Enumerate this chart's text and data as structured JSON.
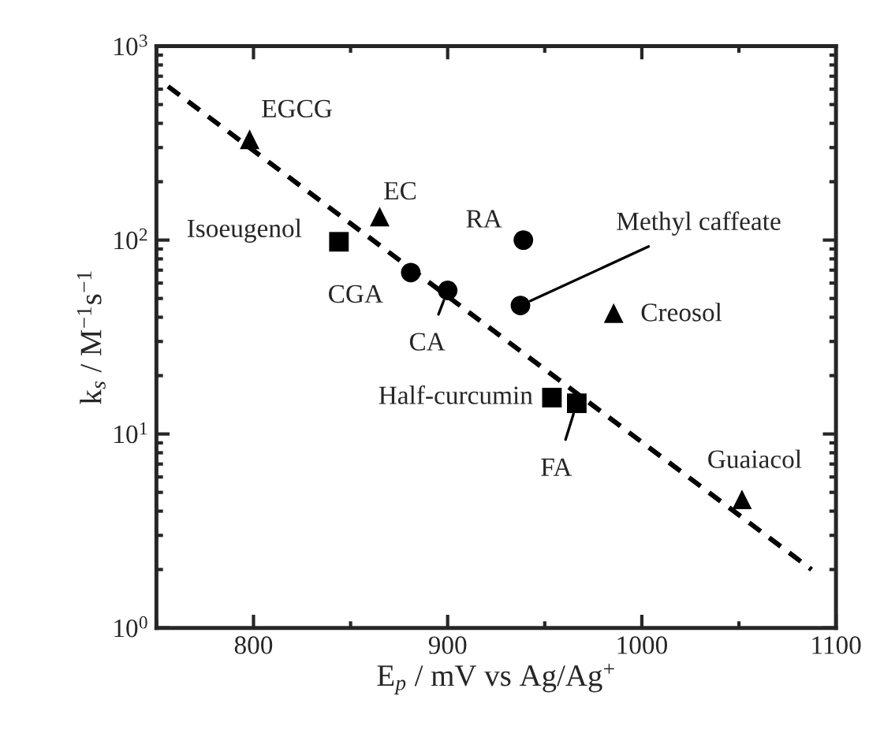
{
  "chart_data": {
    "type": "scatter",
    "xlabel": "E$_{p}$ / mV vs Ag/Ag$^{+}$",
    "ylabel": "k$_{s}$ / M$^{−1}$s$^{−1}$",
    "log": "y",
    "xlim": [
      750,
      1100
    ],
    "xticks": [
      800,
      900,
      1000,
      1100
    ],
    "ylim": [
      1,
      1000
    ],
    "yticks": [
      {
        "value": 1,
        "label": "10$^{0}$"
      },
      {
        "value": 10,
        "label": "10$^{1}$"
      },
      {
        "value": 100,
        "label": "10$^{2}$"
      },
      {
        "value": 1000,
        "label": "10$^{3}$"
      }
    ],
    "grid": false,
    "legend": false,
    "series": [
      {
        "marker": "triangle",
        "color": "#000000",
        "x": [
          798,
          865,
          985.5,
          1051.6
        ],
        "values": [
          331,
          132,
          42,
          4.6
        ]
      },
      {
        "marker": "circle",
        "color": "#000000",
        "x": [
          939,
          881,
          900,
          937.5
        ],
        "values": [
          100,
          68,
          55,
          46
        ]
      },
      {
        "marker": "square",
        "color": "#000000",
        "x": [
          844,
          953.7,
          966.5
        ],
        "values": [
          98,
          15.4,
          14.4
        ]
      },
      {
        "type": "line",
        "line_style": "dashed",
        "marker": "none",
        "color": "#000000",
        "x": [
          756,
          1087.4
        ],
        "values": [
          620,
          2.0
        ]
      }
    ],
    "annotations": [
      {
        "text": "EGCG",
        "x": 798,
        "y": 331
      },
      {
        "text": "EC",
        "x": 865,
        "y": 132
      },
      {
        "text": "Isoeugenol",
        "x": 844,
        "y": 98
      },
      {
        "text": "RA",
        "x": 939,
        "y": 100
      },
      {
        "text": "CGA",
        "x": 881,
        "y": 68
      },
      {
        "text": "CA",
        "x": 900,
        "y": 55
      },
      {
        "text": "Methyl caffeate",
        "x": 937.5,
        "y": 46
      },
      {
        "text": "Creosol",
        "x": 985.5,
        "y": 42
      },
      {
        "text": "Half-curcumin",
        "x": 953.7,
        "y": 15.4
      },
      {
        "text": "FA",
        "x": 966.5,
        "y": 14.4
      },
      {
        "text": "Guaiacol",
        "x": 1051.6,
        "y": 4.6
      }
    ]
  }
}
